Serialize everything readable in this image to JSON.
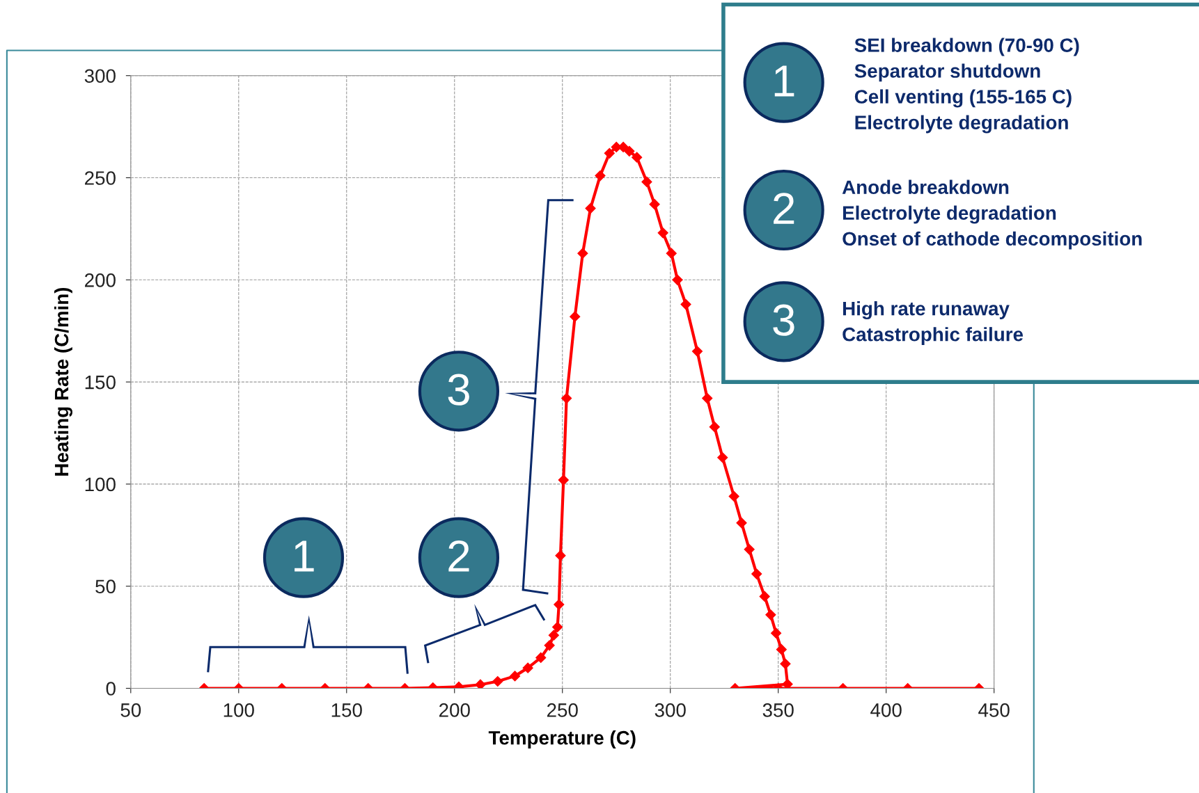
{
  "chart_data": {
    "type": "line",
    "xlabel": "Temperature (C)",
    "ylabel": "Heating Rate (C/min)",
    "series": [
      {
        "color": "#ff0000",
        "x": [
          84,
          100,
          120,
          140,
          160,
          177,
          190,
          202,
          212,
          220,
          228,
          234,
          240,
          244,
          246,
          247.7,
          248.4,
          249.1,
          250.5,
          251.9,
          255.8,
          259.4,
          263,
          267.5,
          271.8,
          275,
          278.2,
          281,
          284.5,
          289.1,
          292.7,
          296.6,
          300.5,
          303.3,
          307.2,
          312.5,
          317.1,
          320.5,
          324.2,
          329.5,
          333,
          336.6,
          340,
          343.7,
          346.5,
          349,
          351.5,
          353.3,
          354.3,
          330,
          350,
          380,
          410,
          443
        ],
        "values": [
          0,
          0,
          0,
          0,
          0,
          0,
          0.3,
          0.7,
          1.8,
          3.4,
          6,
          10,
          15,
          21,
          26,
          30,
          41,
          65,
          102,
          142,
          182,
          213,
          235,
          251,
          262,
          265,
          265,
          263,
          260,
          248,
          237,
          223,
          213,
          200,
          188,
          165,
          142,
          128,
          113,
          94,
          81,
          68,
          56,
          45,
          36,
          27,
          19,
          12,
          2,
          0,
          0,
          0,
          0,
          0
        ]
      }
    ],
    "xlim": [
      50,
      450
    ],
    "xticks": [
      50,
      100,
      150,
      200,
      250,
      300,
      350,
      400,
      450
    ],
    "ylim": [
      0,
      300
    ],
    "yticks": [
      0,
      50,
      100,
      150,
      200,
      250,
      300
    ],
    "grid": true,
    "marker": "diamond",
    "line_style": "solid",
    "annotations": [
      "1",
      "2",
      "3",
      "1",
      "SEI breakdown (70-90 C)\nSeparator shutdown\nCell venting (155-165 C)\nElectrolyte degradation",
      "2",
      "Anode breakdown\nElectrolyte degradation\nOnset of cathode decomposition",
      "3",
      "High rate runaway\nCatastrophic failure"
    ]
  }
}
